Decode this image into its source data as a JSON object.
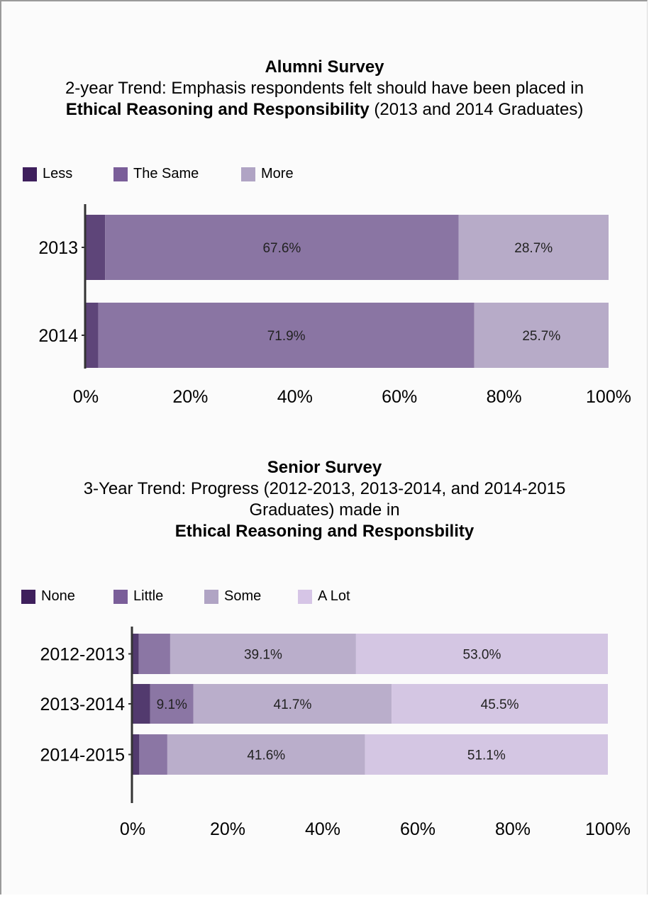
{
  "chart_data": [
    {
      "type": "bar",
      "orientation": "horizontal",
      "stacked": true,
      "title": "Alumni Survey",
      "subtitle_line1": "2-year Trend: Emphasis respondents felt should have been placed in",
      "subtitle_bold": "Ethical Reasoning and Responsibility",
      "subtitle_tail": " (2013 and 2014 Graduates)",
      "categories": [
        "2013",
        "2014"
      ],
      "series": [
        {
          "name": "Less",
          "color": "#5e4579",
          "values": [
            3.7,
            2.4
          ]
        },
        {
          "name": "The Same",
          "color": "#8a75a3",
          "values": [
            67.6,
            71.9
          ],
          "labels": [
            "67.6%",
            "71.9%"
          ]
        },
        {
          "name": "More",
          "color": "#b7abc8",
          "values": [
            28.7,
            25.7
          ],
          "labels": [
            "28.7%",
            "25.7%"
          ]
        }
      ],
      "legend_colors": [
        "#3e1f5c",
        "#7a5e99",
        "#b0a4c4"
      ],
      "xlim": [
        0,
        100
      ],
      "xticks": [
        "0%",
        "20%",
        "40%",
        "60%",
        "80%",
        "100%"
      ],
      "legend": "top-left",
      "grid": false
    },
    {
      "type": "bar",
      "orientation": "horizontal",
      "stacked": true,
      "title": "Senior Survey",
      "subtitle_line1": "3-Year Trend: Progress (2012-2013, 2013-2014, and 2014-2015",
      "subtitle_line2": "Graduates) made in",
      "subtitle_bold": "Ethical Reasoning and Responsbility",
      "categories": [
        "2012-2013",
        "2013-2014",
        "2014-2015"
      ],
      "series": [
        {
          "name": "None",
          "color": "#523a6e",
          "values": [
            1.3,
            3.7,
            1.4
          ]
        },
        {
          "name": "Little",
          "color": "#8b76a4",
          "values": [
            6.6,
            9.1,
            5.9
          ],
          "labels": [
            "",
            "9.1%",
            ""
          ]
        },
        {
          "name": "Some",
          "color": "#baaecb",
          "values": [
            39.1,
            41.7,
            41.6
          ],
          "labels": [
            "39.1%",
            "41.7%",
            "41.6%"
          ]
        },
        {
          "name": "A Lot",
          "color": "#d4c6e3",
          "values": [
            53.0,
            45.5,
            51.1
          ],
          "labels": [
            "53.0%",
            "45.5%",
            "51.1%"
          ]
        }
      ],
      "legend_colors": [
        "#3e1f5c",
        "#7a5e99",
        "#b0a4c4",
        "#d6c5e6"
      ],
      "xlim": [
        0,
        100
      ],
      "xticks": [
        "0%",
        "20%",
        "40%",
        "60%",
        "80%",
        "100%"
      ],
      "legend": "top-left",
      "grid": false
    }
  ]
}
